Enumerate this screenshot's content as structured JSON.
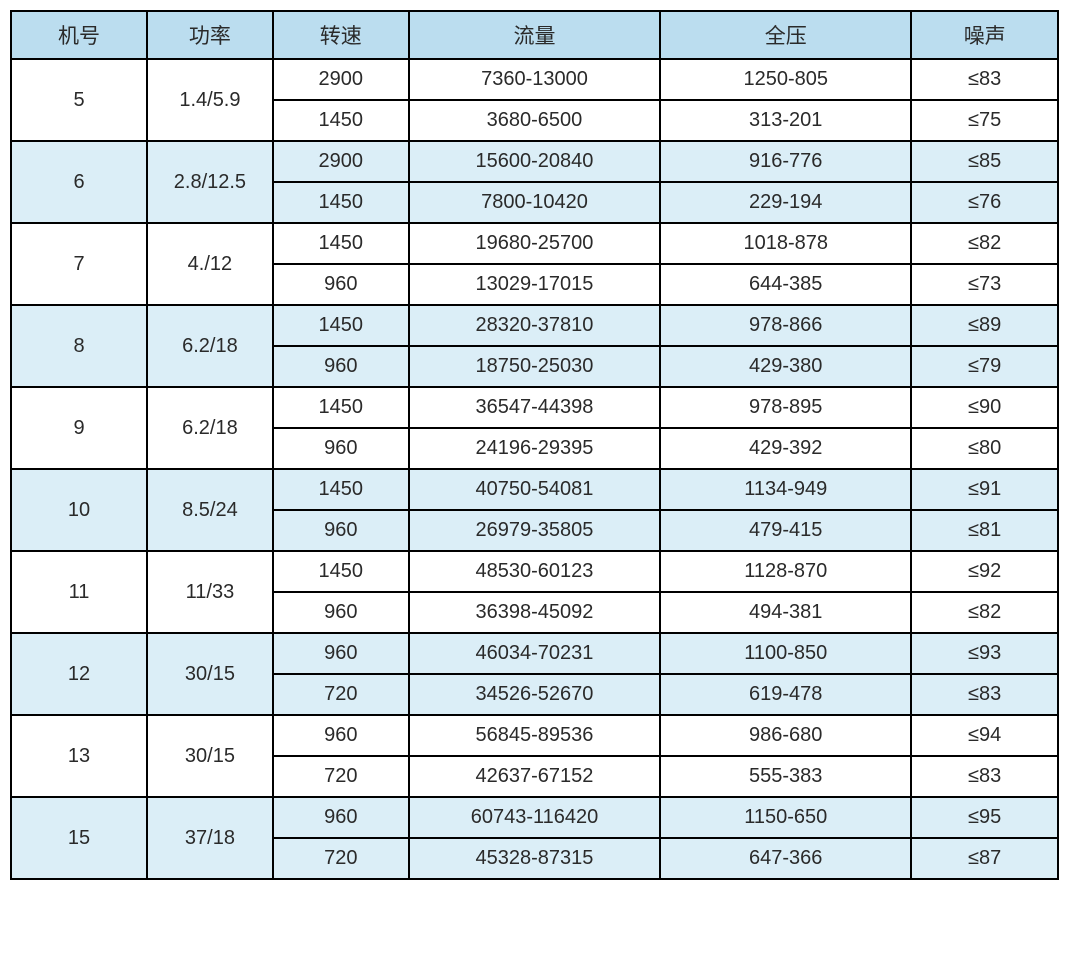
{
  "table": {
    "header_bg": "#bbddef",
    "alt_bg": "#dbeef7",
    "plain_bg": "#ffffff",
    "columns": [
      "机号",
      "功率",
      "转速",
      "流量",
      "全压",
      "噪声"
    ],
    "groups": [
      {
        "machine": "5",
        "power": "1.4/5.9",
        "shaded": false,
        "rows": [
          {
            "speed": "2900",
            "flow": "7360-13000",
            "pressure": "1250-805",
            "noise": "≤83"
          },
          {
            "speed": "1450",
            "flow": "3680-6500",
            "pressure": "313-201",
            "noise": "≤75"
          }
        ]
      },
      {
        "machine": "6",
        "power": "2.8/12.5",
        "shaded": true,
        "rows": [
          {
            "speed": "2900",
            "flow": "15600-20840",
            "pressure": "916-776",
            "noise": "≤85"
          },
          {
            "speed": "1450",
            "flow": "7800-10420",
            "pressure": "229-194",
            "noise": "≤76"
          }
        ]
      },
      {
        "machine": "7",
        "power": "4./12",
        "shaded": false,
        "rows": [
          {
            "speed": "1450",
            "flow": "19680-25700",
            "pressure": "1018-878",
            "noise": "≤82"
          },
          {
            "speed": "960",
            "flow": "13029-17015",
            "pressure": "644-385",
            "noise": "≤73"
          }
        ]
      },
      {
        "machine": "8",
        "power": "6.2/18",
        "shaded": true,
        "rows": [
          {
            "speed": "1450",
            "flow": "28320-37810",
            "pressure": "978-866",
            "noise": "≤89"
          },
          {
            "speed": "960",
            "flow": "18750-25030",
            "pressure": "429-380",
            "noise": "≤79"
          }
        ]
      },
      {
        "machine": "9",
        "power": "6.2/18",
        "shaded": false,
        "rows": [
          {
            "speed": "1450",
            "flow": "36547-44398",
            "pressure": "978-895",
            "noise": "≤90"
          },
          {
            "speed": "960",
            "flow": "24196-29395",
            "pressure": "429-392",
            "noise": "≤80"
          }
        ]
      },
      {
        "machine": "10",
        "power": "8.5/24",
        "shaded": true,
        "rows": [
          {
            "speed": "1450",
            "flow": "40750-54081",
            "pressure": "1134-949",
            "noise": "≤91"
          },
          {
            "speed": "960",
            "flow": "26979-35805",
            "pressure": "479-415",
            "noise": "≤81"
          }
        ]
      },
      {
        "machine": "11",
        "power": "11/33",
        "shaded": false,
        "rows": [
          {
            "speed": "1450",
            "flow": "48530-60123",
            "pressure": "1128-870",
            "noise": "≤92"
          },
          {
            "speed": "960",
            "flow": "36398-45092",
            "pressure": "494-381",
            "noise": "≤82"
          }
        ]
      },
      {
        "machine": "12",
        "power": "30/15",
        "shaded": true,
        "rows": [
          {
            "speed": "960",
            "flow": "46034-70231",
            "pressure": "1100-850",
            "noise": "≤93"
          },
          {
            "speed": "720",
            "flow": "34526-52670",
            "pressure": "619-478",
            "noise": "≤83"
          }
        ]
      },
      {
        "machine": "13",
        "power": "30/15",
        "shaded": false,
        "rows": [
          {
            "speed": "960",
            "flow": "56845-89536",
            "pressure": "986-680",
            "noise": "≤94"
          },
          {
            "speed": "720",
            "flow": "42637-67152",
            "pressure": "555-383",
            "noise": "≤83"
          }
        ]
      },
      {
        "machine": "15",
        "power": "37/18",
        "shaded": true,
        "rows": [
          {
            "speed": "960",
            "flow": "60743-116420",
            "pressure": "1150-650",
            "noise": "≤95"
          },
          {
            "speed": "720",
            "flow": "45328-87315",
            "pressure": "647-366",
            "noise": "≤87"
          }
        ]
      }
    ]
  }
}
